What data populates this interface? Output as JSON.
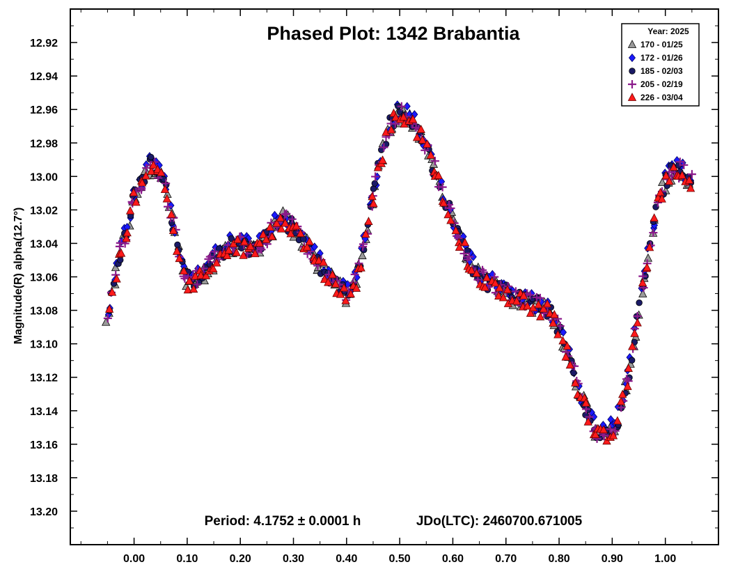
{
  "chart_data": {
    "type": "scatter",
    "title": "Phased Plot: 1342 Brabantia",
    "xlabel": "",
    "ylabel": "Magnitude(R) alpha(12.7°)",
    "xlim": [
      -0.12,
      1.1
    ],
    "ylim": [
      13.22,
      12.9
    ],
    "y_inverted": true,
    "x_ticks": [
      0.0,
      0.1,
      0.2,
      0.3,
      0.4,
      0.5,
      0.6,
      0.7,
      0.8,
      0.9,
      1.0
    ],
    "x_tick_labels": [
      "0.00",
      "0.10",
      "0.20",
      "0.30",
      "0.40",
      "0.50",
      "0.60",
      "0.70",
      "0.80",
      "0.90",
      "1.00"
    ],
    "y_ticks": [
      12.92,
      12.94,
      12.96,
      12.98,
      13.0,
      13.02,
      13.04,
      13.06,
      13.08,
      13.1,
      13.12,
      13.14,
      13.16,
      13.18,
      13.2
    ],
    "y_tick_labels": [
      "12.92",
      "12.94",
      "12.96",
      "12.98",
      "13.00",
      "13.02",
      "13.04",
      "13.06",
      "13.08",
      "13.10",
      "13.12",
      "13.14",
      "13.16",
      "13.18",
      "13.20"
    ],
    "grid": false,
    "legend_position": "top-right",
    "legend_title": "Year: 2025",
    "annotation_period": "Period: 4.1752 ± 0.0001 h",
    "annotation_epoch": "JDo(LTC): 2460700.671005",
    "light_curve": {
      "phase": [
        -0.05,
        -0.03,
        -0.01,
        0.0,
        0.02,
        0.03,
        0.045,
        0.06,
        0.075,
        0.09,
        0.1,
        0.11,
        0.13,
        0.15,
        0.17,
        0.19,
        0.21,
        0.23,
        0.25,
        0.265,
        0.28,
        0.3,
        0.32,
        0.34,
        0.36,
        0.38,
        0.4,
        0.42,
        0.44,
        0.46,
        0.48,
        0.5,
        0.52,
        0.54,
        0.56,
        0.58,
        0.6,
        0.62,
        0.64,
        0.66,
        0.68,
        0.7,
        0.72,
        0.74,
        0.76,
        0.78,
        0.8,
        0.82,
        0.84,
        0.86,
        0.875,
        0.89,
        0.91,
        0.93,
        0.95,
        0.97,
        0.99,
        1.01,
        1.03,
        1.05
      ],
      "magnitude": [
        13.086,
        13.05,
        13.028,
        13.012,
        13.0,
        12.993,
        12.996,
        13.008,
        13.03,
        13.052,
        13.062,
        13.063,
        13.058,
        13.05,
        13.044,
        13.04,
        13.042,
        13.042,
        13.036,
        13.028,
        13.025,
        13.03,
        13.038,
        13.048,
        13.056,
        13.064,
        13.07,
        13.06,
        13.03,
        12.995,
        12.97,
        12.962,
        12.966,
        12.975,
        12.99,
        13.01,
        13.026,
        13.042,
        13.055,
        13.062,
        13.066,
        13.07,
        13.073,
        13.075,
        13.077,
        13.08,
        13.092,
        13.11,
        13.13,
        13.145,
        13.154,
        13.155,
        13.145,
        13.12,
        13.08,
        13.04,
        13.01,
        12.998,
        12.996,
        13.002
      ]
    },
    "series": [
      {
        "name": "170 - 01/25",
        "marker": "triangle",
        "color": "#9a9a9a",
        "stroke": "#000000",
        "offset": 0.0009
      },
      {
        "name": "172 - 01/26",
        "marker": "diamond",
        "color": "#1a1aff",
        "stroke": "#000066",
        "offset": -0.0012
      },
      {
        "name": "185 - 02/03",
        "marker": "circle",
        "color": "#1a1a66",
        "stroke": "#000000",
        "offset": 0.0002
      },
      {
        "name": "205 - 02/19",
        "marker": "plus",
        "color": "#8b1a8b",
        "stroke": "#8b1a8b",
        "offset": -0.0004
      },
      {
        "name": "226 - 03/04",
        "marker": "triangle",
        "color": "#ff1a1a",
        "stroke": "#660000",
        "offset": 0.0012
      }
    ]
  }
}
